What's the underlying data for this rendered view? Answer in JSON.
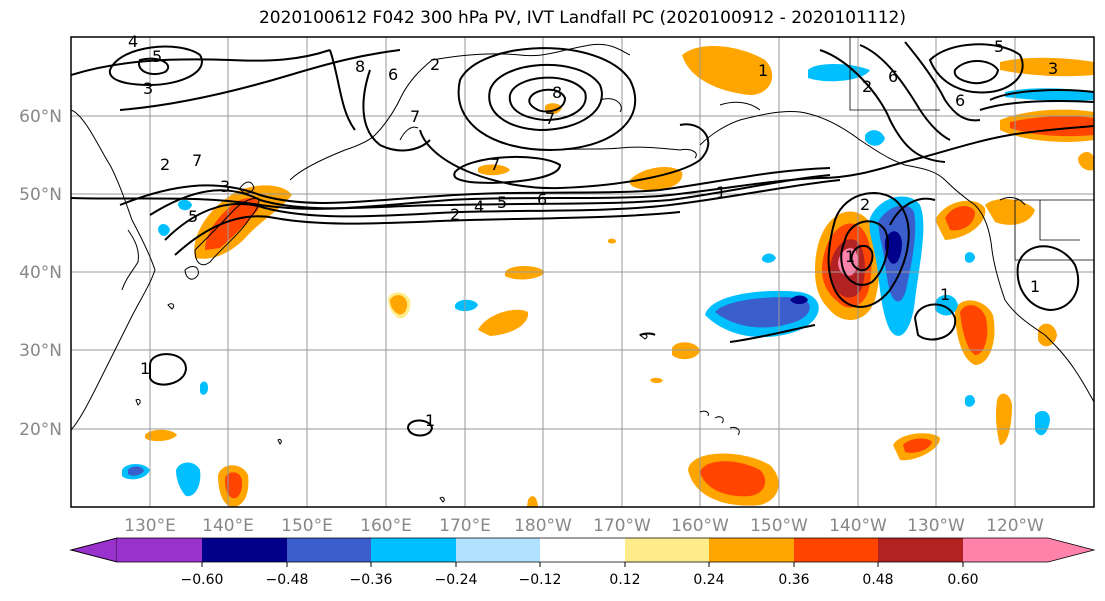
{
  "title": "2020100612 F042 300 hPa PV, IVT Landfall PC (2020100912 - 2020101112)",
  "lat_labels": [
    "60°N",
    "50°N",
    "40°N",
    "30°N",
    "20°N"
  ],
  "lon_labels": [
    "130°E",
    "140°E",
    "150°E",
    "160°E",
    "170°E",
    "180°W",
    "170°W",
    "160°W",
    "150°W",
    "140°W",
    "130°W",
    "120°W"
  ],
  "colorbar": {
    "ticks": [
      "−0.60",
      "−0.48",
      "−0.36",
      "−0.24",
      "−0.12",
      "0.12",
      "0.24",
      "0.36",
      "0.48",
      "0.60"
    ],
    "colors": [
      "#9932cc",
      "#00008b",
      "#3a5fcd",
      "#00bfff",
      "#b0e2ff",
      "#ffffff",
      "#ffec8b",
      "#ffa500",
      "#ff4500",
      "#b22222",
      "#ff82ab"
    ]
  },
  "contour_labels": [
    "4",
    "5",
    "3",
    "8",
    "6",
    "2",
    "7",
    "8",
    "7",
    "2",
    "7",
    "3",
    "5",
    "2",
    "4",
    "5",
    "6",
    "7",
    "1",
    "1",
    "5",
    "3",
    "6",
    "6",
    "2",
    "2",
    "1",
    "1",
    "1",
    "1",
    "1"
  ]
}
